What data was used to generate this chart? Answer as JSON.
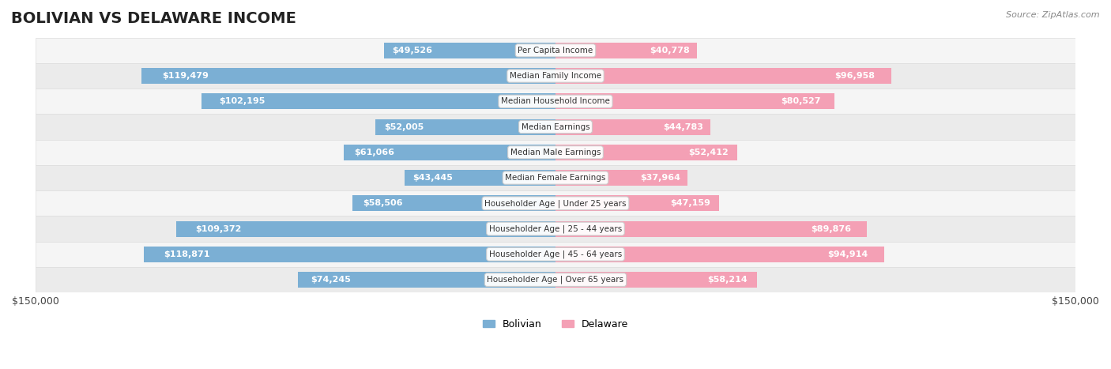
{
  "title": "BOLIVIAN VS DELAWARE INCOME",
  "source": "Source: ZipAtlas.com",
  "categories": [
    "Per Capita Income",
    "Median Family Income",
    "Median Household Income",
    "Median Earnings",
    "Median Male Earnings",
    "Median Female Earnings",
    "Householder Age | Under 25 years",
    "Householder Age | 25 - 44 years",
    "Householder Age | 45 - 64 years",
    "Householder Age | Over 65 years"
  ],
  "bolivian_values": [
    49526,
    119479,
    102195,
    52005,
    61066,
    43445,
    58506,
    109372,
    118871,
    74245
  ],
  "delaware_values": [
    40778,
    96958,
    80527,
    44783,
    52412,
    37964,
    47159,
    89876,
    94914,
    58214
  ],
  "bolivian_labels": [
    "$49,526",
    "$119,479",
    "$102,195",
    "$52,005",
    "$61,066",
    "$43,445",
    "$58,506",
    "$109,372",
    "$118,871",
    "$74,245"
  ],
  "delaware_labels": [
    "$40,778",
    "$96,958",
    "$80,527",
    "$44,783",
    "$52,412",
    "$37,964",
    "$47,159",
    "$89,876",
    "$94,914",
    "$58,214"
  ],
  "bolivian_color": "#7bafd4",
  "bolivian_color_dark": "#5b9ac4",
  "delaware_color": "#f4a0b5",
  "delaware_color_dark": "#e8728f",
  "max_value": 150000,
  "background_color": "#ffffff",
  "row_bg_color": "#f0f0f0",
  "title_fontsize": 14,
  "label_fontsize": 8.5,
  "tick_fontsize": 9
}
